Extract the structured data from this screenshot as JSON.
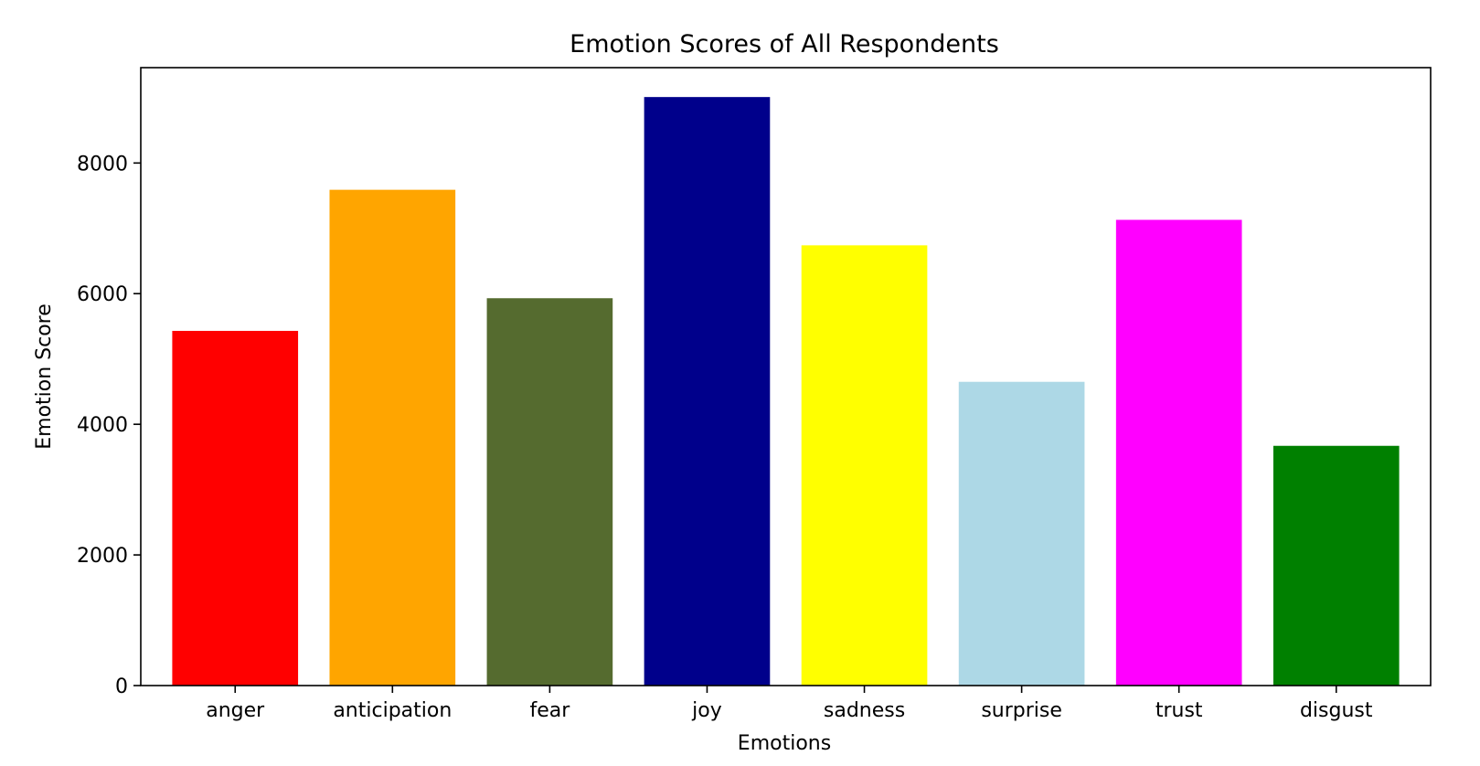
{
  "chart_data": {
    "type": "bar",
    "title": "Emotion Scores of All Respondents",
    "xlabel": "Emotions",
    "ylabel": "Emotion Score",
    "categories": [
      "anger",
      "anticipation",
      "fear",
      "joy",
      "sadness",
      "surprise",
      "trust",
      "disgust"
    ],
    "values": [
      5430,
      7590,
      5930,
      9010,
      6740,
      4650,
      7130,
      3670
    ],
    "colors": [
      "#ff0000",
      "#ffa500",
      "#556b2f",
      "#00008b",
      "#ffff00",
      "#add8e6",
      "#ff00ff",
      "#008000"
    ],
    "ylim": [
      0,
      9460
    ],
    "yticks": [
      0,
      2000,
      4000,
      6000,
      8000
    ],
    "ytick_labels": [
      "0",
      "2000",
      "4000",
      "6000",
      "8000"
    ],
    "grid": false,
    "legend": "none"
  }
}
